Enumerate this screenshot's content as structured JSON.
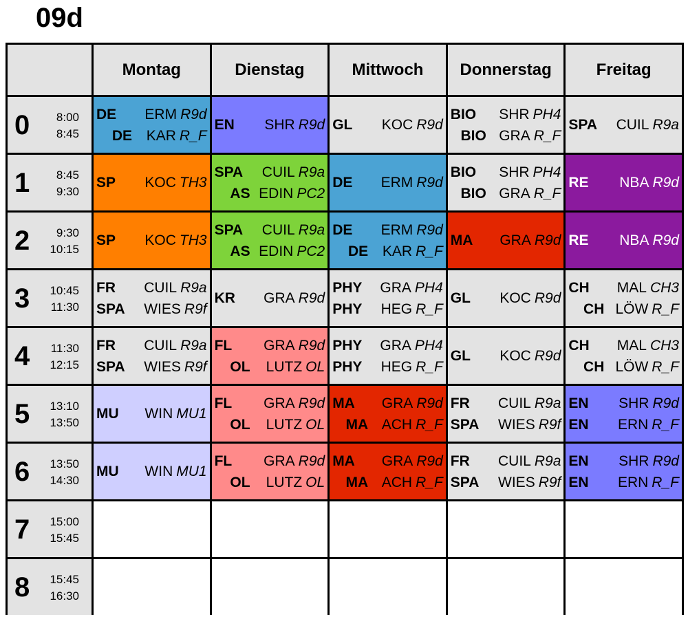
{
  "title": "09d",
  "colors": {
    "blue": "#4ba3d4",
    "violet": "#7b7bff",
    "grey": "#e3e3e3",
    "orange": "#ff7f00",
    "green": "#7ed33a",
    "red": "#e32600",
    "purple": "#8b1a9e",
    "lavender": "#cfcfff",
    "pink": "#ff8a8a",
    "white": "#ffffff"
  },
  "days": [
    "Montag",
    "Dienstag",
    "Mittwoch",
    "Donnerstag",
    "Freitag"
  ],
  "rows": [
    {
      "period": "0",
      "start": "8:00",
      "end": "8:45",
      "cells": [
        {
          "color": "blue",
          "lines": [
            {
              "s": "DE",
              "t": "ERM",
              "r": "R9d"
            },
            {
              "s": "DE",
              "t": "KAR",
              "r": "R_F",
              "right": true
            }
          ]
        },
        {
          "color": "violet",
          "lines": [
            {
              "s": "EN",
              "t": "SHR",
              "r": "R9d"
            }
          ]
        },
        {
          "color": "grey",
          "lines": [
            {
              "s": "GL",
              "t": "KOC",
              "r": "R9d"
            }
          ]
        },
        {
          "color": "grey",
          "lines": [
            {
              "s": "BIO",
              "t": "SHR",
              "r": "PH4"
            },
            {
              "s": "BIO",
              "t": "GRA",
              "r": "R_F",
              "right": true
            }
          ]
        },
        {
          "color": "grey",
          "lines": [
            {
              "s": "SPA",
              "t": "CUIL",
              "r": "R9a"
            }
          ]
        }
      ]
    },
    {
      "period": "1",
      "start": "8:45",
      "end": "9:30",
      "cells": [
        {
          "color": "orange",
          "lines": [
            {
              "s": "SP",
              "t": "KOC",
              "r": "TH3"
            }
          ]
        },
        {
          "color": "green",
          "lines": [
            {
              "s": "SPA",
              "t": "CUIL",
              "r": "R9a"
            },
            {
              "s": "AS",
              "t": "EDIN",
              "r": "PC2",
              "right": true
            }
          ]
        },
        {
          "color": "blue",
          "lines": [
            {
              "s": "DE",
              "t": "ERM",
              "r": "R9d"
            }
          ]
        },
        {
          "color": "grey",
          "lines": [
            {
              "s": "BIO",
              "t": "SHR",
              "r": "PH4"
            },
            {
              "s": "BIO",
              "t": "GRA",
              "r": "R_F",
              "right": true
            }
          ]
        },
        {
          "color": "purple",
          "lines": [
            {
              "s": "RE",
              "t": "NBA",
              "r": "R9d"
            }
          ]
        }
      ]
    },
    {
      "period": "2",
      "start": "9:30",
      "end": "10:15",
      "cells": [
        {
          "color": "orange",
          "lines": [
            {
              "s": "SP",
              "t": "KOC",
              "r": "TH3"
            }
          ]
        },
        {
          "color": "green",
          "lines": [
            {
              "s": "SPA",
              "t": "CUIL",
              "r": "R9a"
            },
            {
              "s": "AS",
              "t": "EDIN",
              "r": "PC2",
              "right": true
            }
          ]
        },
        {
          "color": "blue",
          "lines": [
            {
              "s": "DE",
              "t": "ERM",
              "r": "R9d"
            },
            {
              "s": "DE",
              "t": "KAR",
              "r": "R_F",
              "right": true
            }
          ]
        },
        {
          "color": "red",
          "lines": [
            {
              "s": "MA",
              "t": "GRA",
              "r": "R9d"
            }
          ]
        },
        {
          "color": "purple",
          "lines": [
            {
              "s": "RE",
              "t": "NBA",
              "r": "R9d"
            }
          ]
        }
      ]
    },
    {
      "period": "3",
      "start": "10:45",
      "end": "11:30",
      "cells": [
        {
          "color": "grey",
          "lines": [
            {
              "s": "FR",
              "t": "CUIL",
              "r": "R9a"
            },
            {
              "s": "SPA",
              "t": "WIES",
              "r": "R9f"
            }
          ]
        },
        {
          "color": "grey",
          "lines": [
            {
              "s": "KR",
              "t": "GRA",
              "r": "R9d"
            }
          ]
        },
        {
          "color": "grey",
          "lines": [
            {
              "s": "PHY",
              "t": "GRA",
              "r": "PH4"
            },
            {
              "s": "PHY",
              "t": "HEG",
              "r": "R_F"
            }
          ]
        },
        {
          "color": "grey",
          "lines": [
            {
              "s": "GL",
              "t": "KOC",
              "r": "R9d"
            }
          ]
        },
        {
          "color": "grey",
          "lines": [
            {
              "s": "CH",
              "t": "MAL",
              "r": "CH3"
            },
            {
              "s": "CH",
              "t": "LÖW",
              "r": "R_F",
              "right": true
            }
          ]
        }
      ]
    },
    {
      "period": "4",
      "start": "11:30",
      "end": "12:15",
      "cells": [
        {
          "color": "grey",
          "lines": [
            {
              "s": "FR",
              "t": "CUIL",
              "r": "R9a"
            },
            {
              "s": "SPA",
              "t": "WIES",
              "r": "R9f"
            }
          ]
        },
        {
          "color": "pink",
          "lines": [
            {
              "s": "FL",
              "t": "GRA",
              "r": "R9d"
            },
            {
              "s": "OL",
              "t": "LUTZ",
              "r": "OL",
              "right": true
            }
          ]
        },
        {
          "color": "grey",
          "lines": [
            {
              "s": "PHY",
              "t": "GRA",
              "r": "PH4"
            },
            {
              "s": "PHY",
              "t": "HEG",
              "r": "R_F"
            }
          ]
        },
        {
          "color": "grey",
          "lines": [
            {
              "s": "GL",
              "t": "KOC",
              "r": "R9d"
            }
          ]
        },
        {
          "color": "grey",
          "lines": [
            {
              "s": "CH",
              "t": "MAL",
              "r": "CH3"
            },
            {
              "s": "CH",
              "t": "LÖW",
              "r": "R_F",
              "right": true
            }
          ]
        }
      ]
    },
    {
      "period": "5",
      "start": "13:10",
      "end": "13:50",
      "cells": [
        {
          "color": "lavender",
          "lines": [
            {
              "s": "MU",
              "t": "WIN",
              "r": "MU1"
            }
          ]
        },
        {
          "color": "pink",
          "lines": [
            {
              "s": "FL",
              "t": "GRA",
              "r": "R9d"
            },
            {
              "s": "OL",
              "t": "LUTZ",
              "r": "OL",
              "right": true
            }
          ]
        },
        {
          "color": "red",
          "lines": [
            {
              "s": "MA",
              "t": "GRA",
              "r": "R9d"
            },
            {
              "s": "MA",
              "t": "ACH",
              "r": "R_F",
              "right": true
            }
          ]
        },
        {
          "color": "grey",
          "lines": [
            {
              "s": "FR",
              "t": "CUIL",
              "r": "R9a"
            },
            {
              "s": "SPA",
              "t": "WIES",
              "r": "R9f"
            }
          ]
        },
        {
          "color": "violet",
          "lines": [
            {
              "s": "EN",
              "t": "SHR",
              "r": "R9d"
            },
            {
              "s": "EN",
              "t": "ERN",
              "r": "R_F"
            }
          ]
        }
      ]
    },
    {
      "period": "6",
      "start": "13:50",
      "end": "14:30",
      "cells": [
        {
          "color": "lavender",
          "lines": [
            {
              "s": "MU",
              "t": "WIN",
              "r": "MU1"
            }
          ]
        },
        {
          "color": "pink",
          "lines": [
            {
              "s": "FL",
              "t": "GRA",
              "r": "R9d"
            },
            {
              "s": "OL",
              "t": "LUTZ",
              "r": "OL",
              "right": true
            }
          ]
        },
        {
          "color": "red",
          "lines": [
            {
              "s": "MA",
              "t": "GRA",
              "r": "R9d"
            },
            {
              "s": "MA",
              "t": "ACH",
              "r": "R_F",
              "right": true
            }
          ]
        },
        {
          "color": "grey",
          "lines": [
            {
              "s": "FR",
              "t": "CUIL",
              "r": "R9a"
            },
            {
              "s": "SPA",
              "t": "WIES",
              "r": "R9f"
            }
          ]
        },
        {
          "color": "violet",
          "lines": [
            {
              "s": "EN",
              "t": "SHR",
              "r": "R9d"
            },
            {
              "s": "EN",
              "t": "ERN",
              "r": "R_F"
            }
          ]
        }
      ]
    },
    {
      "period": "7",
      "start": "15:00",
      "end": "15:45",
      "cells": [
        {
          "color": "white",
          "lines": []
        },
        {
          "color": "white",
          "lines": []
        },
        {
          "color": "white",
          "lines": []
        },
        {
          "color": "white",
          "lines": []
        },
        {
          "color": "white",
          "lines": []
        }
      ]
    },
    {
      "period": "8",
      "start": "15:45",
      "end": "16:30",
      "cells": [
        {
          "color": "white",
          "lines": []
        },
        {
          "color": "white",
          "lines": []
        },
        {
          "color": "white",
          "lines": []
        },
        {
          "color": "white",
          "lines": []
        },
        {
          "color": "white",
          "lines": []
        }
      ]
    }
  ]
}
